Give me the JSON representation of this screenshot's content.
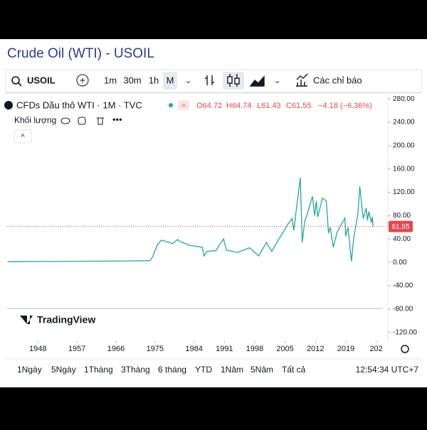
{
  "header": {
    "title": "Crude Oil (WTI) - USOIL"
  },
  "toolbar": {
    "symbol": "USOIL",
    "intervals": [
      "1m",
      "30m",
      "1h",
      "M"
    ],
    "indicators": "Các chỉ báo"
  },
  "legend": {
    "name": "CFDs Dầu thô WTI · 1M · TVC",
    "ohlc": [
      "O64.72",
      "H64.74",
      "L61.43",
      "C61.55",
      "−4.18 (−6.36%)"
    ],
    "volume": "Khối lượng"
  },
  "watermark": "TradingView",
  "ranges": [
    "1Ngày",
    "5Ngày",
    "1Tháng",
    "3Tháng",
    "6 tháng",
    "YTD",
    "1Năm",
    "5Năm",
    "Tất cả"
  ],
  "clock": "12:54:34 UTC+7",
  "chart_data": {
    "type": "line",
    "x": [
      1941,
      1950,
      1960,
      1970,
      1973.8,
      1974.5,
      1975.5,
      1976.5,
      1977.5,
      1978.3,
      1979,
      1980.2,
      1981,
      1983,
      1985.9,
      1986.3,
      1987,
      1989,
      1990.8,
      1991.5,
      1994,
      1996.8,
      1998.9,
      2000.7,
      2001.9,
      2003,
      2005.7,
      2006.6,
      2007,
      2008.5,
      2008.95,
      2009.5,
      2010,
      2011.3,
      2011.8,
      2012.2,
      2012.5,
      2013.6,
      2014.5,
      2015,
      2015.4,
      2016.1,
      2017,
      2018.8,
      2018.95,
      2019.5,
      2020.3,
      2020.8,
      2021.8,
      2022.2,
      2022.5,
      2023,
      2023.7,
      2024,
      2024.3,
      2024.9,
      2025.1,
      2025.3
    ],
    "values": [
      1.2,
      1.5,
      2,
      2.5,
      3,
      10,
      30,
      38,
      36,
      34,
      32,
      39,
      35,
      29,
      26,
      11,
      19,
      20,
      40,
      21,
      17,
      25,
      11,
      34,
      19,
      33,
      66,
      75,
      55,
      145,
      34,
      70,
      80,
      113,
      80,
      105,
      78,
      110,
      105,
      50,
      60,
      26,
      52,
      76,
      45,
      60,
      2,
      40,
      84,
      130,
      110,
      75,
      93,
      72,
      87,
      68,
      78,
      61.55
    ],
    "color": "#26a69a",
    "xlim": [
      1940.9,
      2030
    ],
    "ylim": [
      -135,
      290
    ],
    "xticks": [
      1948,
      1957,
      1966,
      1975,
      1984,
      1991,
      1998,
      2005,
      2012,
      2019,
      {
        "value": 2026,
        "label": "202"
      }
    ],
    "yticks": [
      {
        "value": 280,
        "label": "280.00"
      },
      {
        "value": 240,
        "label": "240.00"
      },
      {
        "value": 200,
        "label": "200.00"
      },
      {
        "value": 160,
        "label": "160.00"
      },
      {
        "value": 120,
        "label": "120.00"
      },
      {
        "value": 80,
        "label": "80.00"
      },
      {
        "value": 40,
        "label": "40.00"
      },
      {
        "value": 0,
        "label": "0.00"
      },
      {
        "value": -40,
        "label": "-40.00"
      },
      {
        "value": -80,
        "label": "-80.00"
      },
      {
        "value": -120,
        "label": "-120.00"
      }
    ],
    "price_line": {
      "value": 61.55,
      "label": "61.55",
      "color": "#e5484d"
    }
  }
}
